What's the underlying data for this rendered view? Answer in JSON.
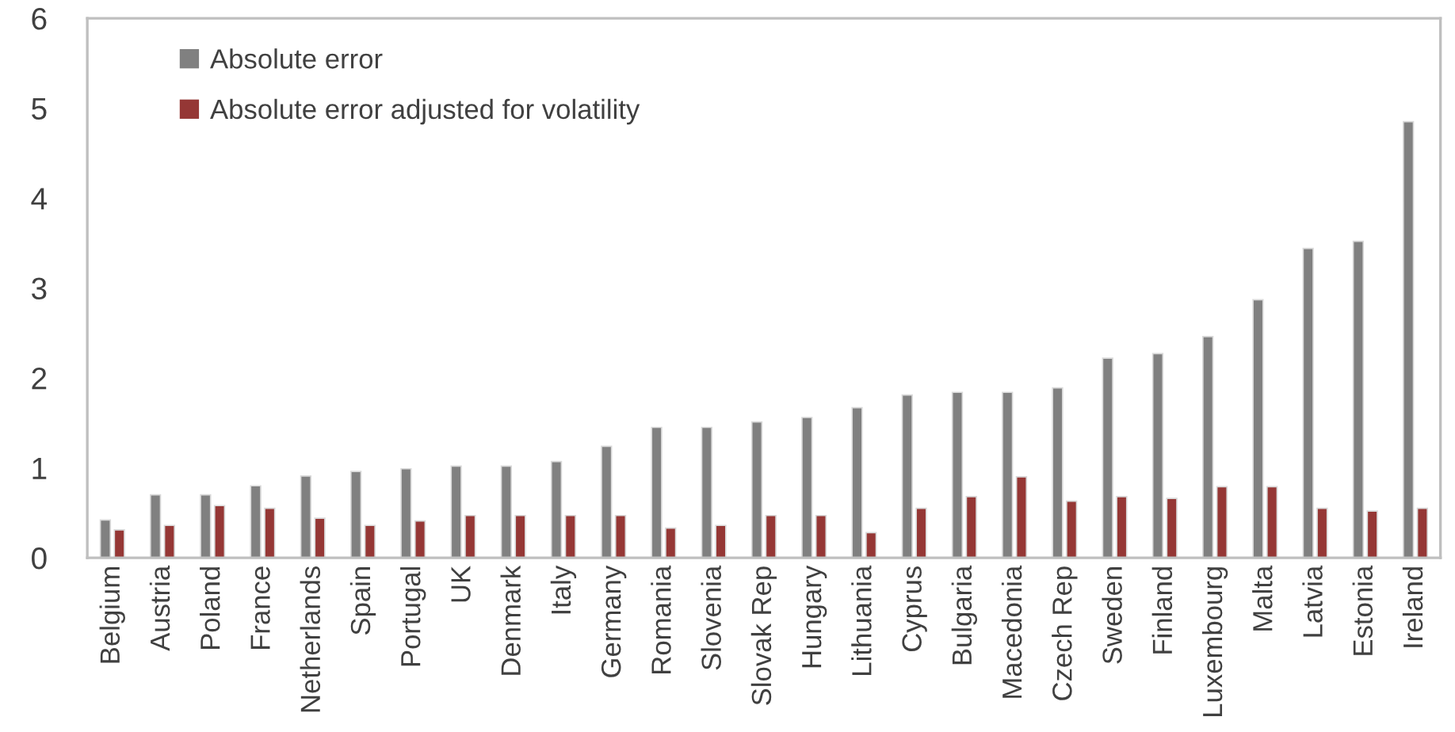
{
  "chart_data": {
    "type": "bar",
    "categories": [
      "Belgium",
      "Austria",
      "Poland",
      "France",
      "Netherlands",
      "Spain",
      "Portugal",
      "UK",
      "Denmark",
      "Italy",
      "Germany",
      "Romania",
      "Slovenia",
      "Slovak Rep",
      "Hungary",
      "Lithuania",
      "Cyprus",
      "Bulgaria",
      "Macedonia",
      "Czech Rep",
      "Sweden",
      "Finland",
      "Luxembourg",
      "Malta",
      "Latvia",
      "Estonia",
      "Ireland"
    ],
    "series": [
      {
        "name": "Absolute error",
        "color": "#808080",
        "values": [
          0.42,
          0.7,
          0.7,
          0.8,
          0.91,
          0.96,
          0.99,
          1.02,
          1.02,
          1.07,
          1.24,
          1.45,
          1.45,
          1.51,
          1.56,
          1.67,
          1.81,
          1.84,
          1.84,
          1.89,
          2.22,
          2.27,
          2.46,
          2.87,
          3.44,
          3.52,
          4.85
        ]
      },
      {
        "name": "Absolute error adjusted for volatility",
        "color": "#953735",
        "values": [
          0.31,
          0.36,
          0.58,
          0.55,
          0.44,
          0.36,
          0.41,
          0.47,
          0.47,
          0.47,
          0.47,
          0.33,
          0.36,
          0.47,
          0.47,
          0.28,
          0.55,
          0.68,
          0.9,
          0.63,
          0.68,
          0.66,
          0.79,
          0.79,
          0.55,
          0.52,
          0.55
        ]
      }
    ],
    "ylim": [
      0,
      6
    ],
    "yticks": [
      0,
      1,
      2,
      3,
      4,
      5,
      6
    ],
    "grid": false,
    "legend": "top left"
  }
}
